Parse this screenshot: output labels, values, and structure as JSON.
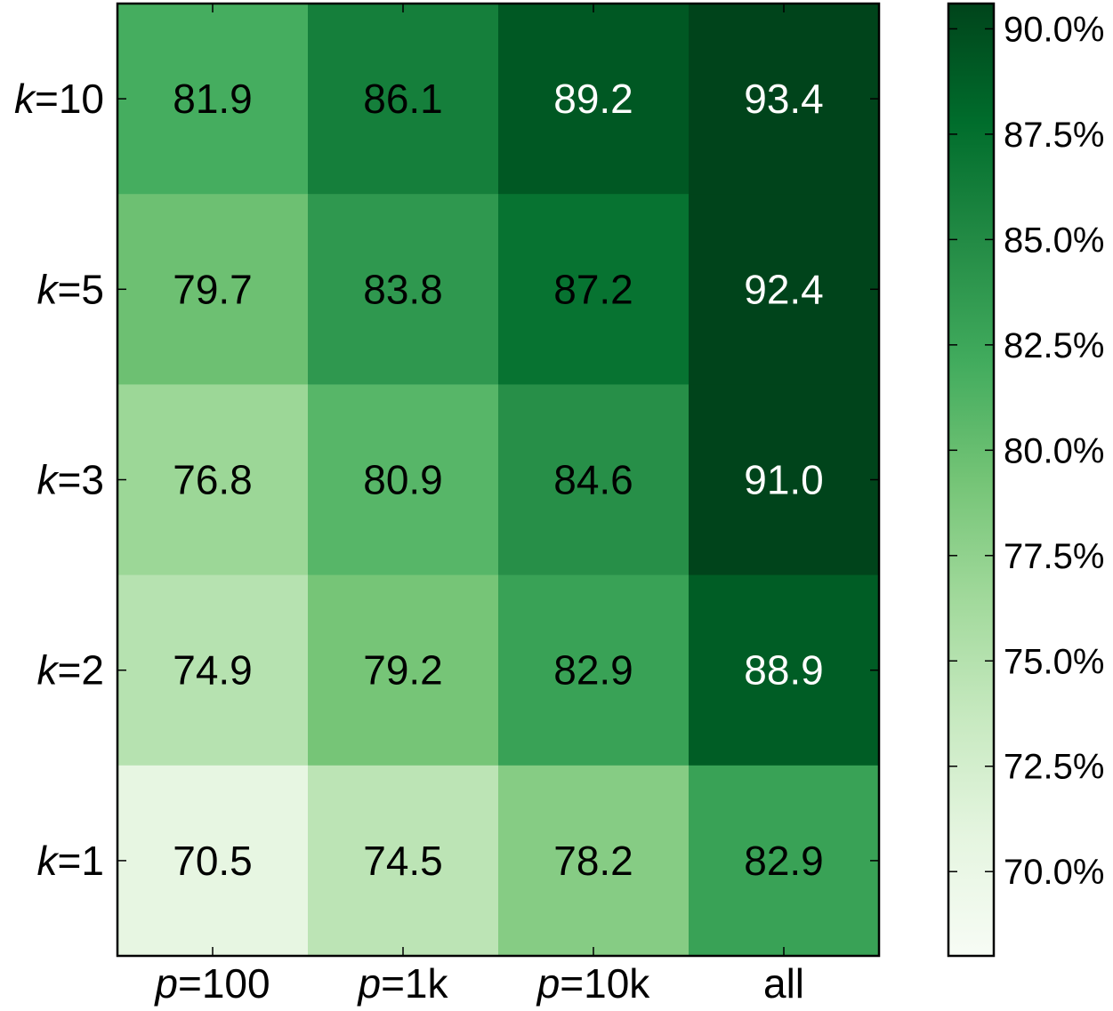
{
  "chart_data": {
    "type": "heatmap",
    "title": "",
    "xlabel": "",
    "ylabel": "",
    "x_categories": [
      {
        "var": "p",
        "rest": "=100"
      },
      {
        "var": "p",
        "rest": "=1k"
      },
      {
        "var": "p",
        "rest": "=10k"
      },
      {
        "var": "",
        "rest": "all"
      }
    ],
    "y_categories": [
      {
        "var": "k",
        "rest": "=10"
      },
      {
        "var": "k",
        "rest": "=5"
      },
      {
        "var": "k",
        "rest": "=3"
      },
      {
        "var": "k",
        "rest": "=2"
      },
      {
        "var": "k",
        "rest": "=1"
      }
    ],
    "values": [
      [
        81.9,
        86.1,
        89.2,
        93.4
      ],
      [
        79.7,
        83.8,
        87.2,
        92.4
      ],
      [
        76.8,
        80.9,
        84.6,
        91.0
      ],
      [
        74.9,
        79.2,
        82.9,
        88.9
      ],
      [
        70.5,
        74.5,
        78.2,
        82.9
      ]
    ],
    "value_labels": [
      [
        "81.9",
        "86.1",
        "89.2",
        "93.4"
      ],
      [
        "79.7",
        "83.8",
        "87.2",
        "92.4"
      ],
      [
        "76.8",
        "80.9",
        "84.6",
        "91.0"
      ],
      [
        "74.9",
        "79.2",
        "82.9",
        "88.9"
      ],
      [
        "70.5",
        "74.5",
        "78.2",
        "82.9"
      ]
    ],
    "colormap": "Greens",
    "colormap_stops": [
      "#f7fcf5",
      "#e5f5e0",
      "#c7e9c0",
      "#a1d99b",
      "#74c476",
      "#41ab5d",
      "#238b45",
      "#006d2c",
      "#00441b"
    ],
    "color_range": [
      68.0,
      90.6
    ],
    "light_text_threshold": 88.0,
    "colorbar": {
      "ticks": [
        70.0,
        72.5,
        75.0,
        77.5,
        80.0,
        82.5,
        85.0,
        87.5,
        90.0
      ],
      "tick_labels": [
        "70.0%",
        "72.5%",
        "75.0%",
        "77.5%",
        "80.0%",
        "82.5%",
        "85.0%",
        "87.5%",
        "90.0%"
      ]
    }
  }
}
